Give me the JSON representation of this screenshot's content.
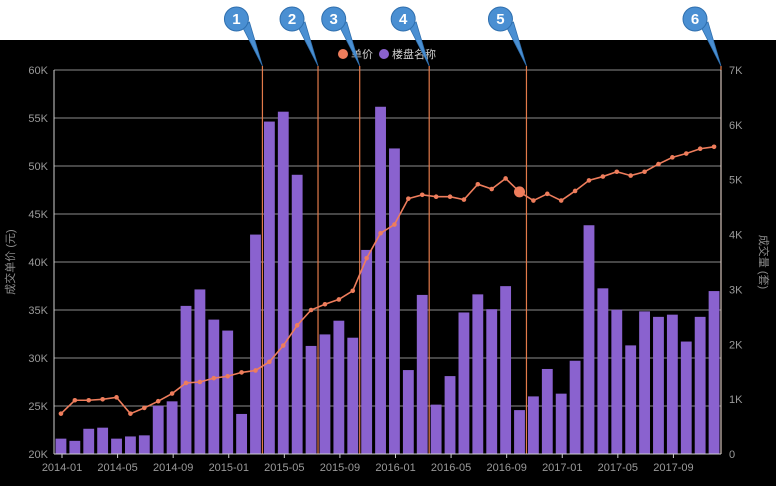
{
  "colors": {
    "background": "#000000",
    "price_line": "#ee7d5c",
    "bars": "#8a62cf",
    "markers": "#e37a4a",
    "callout": "#4a8fd2",
    "grid": "#bdbdbd"
  },
  "callouts": [
    {
      "label": "1",
      "category": "2015-03"
    },
    {
      "label": "2",
      "category": "2015-07"
    },
    {
      "label": "3",
      "category": "2015-10"
    },
    {
      "label": "4",
      "category": "2016-03"
    },
    {
      "label": "5",
      "category": "2016-10"
    },
    {
      "label": "6",
      "category": "2017-12"
    }
  ],
  "chart_data": {
    "type": "bar",
    "categories": [
      "2014-01",
      "2014-02",
      "2014-03",
      "2014-04",
      "2014-05",
      "2014-06",
      "2014-07",
      "2014-08",
      "2014-09",
      "2014-10",
      "2014-11",
      "2014-12",
      "2015-01",
      "2015-02",
      "2015-03",
      "2015-04",
      "2015-05",
      "2015-06",
      "2015-07",
      "2015-08",
      "2015-09",
      "2015-10",
      "2015-11",
      "2015-12",
      "2016-01",
      "2016-02",
      "2016-03",
      "2016-04",
      "2016-05",
      "2016-06",
      "2016-07",
      "2016-08",
      "2016-09",
      "2016-10",
      "2016-11",
      "2016-12",
      "2017-01",
      "2017-02",
      "2017-03",
      "2017-04",
      "2017-05",
      "2017-06",
      "2017-07",
      "2017-08",
      "2017-09",
      "2017-10",
      "2017-11",
      "2017-12"
    ],
    "x_tick_labels": [
      "2014-01",
      "2014-05",
      "2014-09",
      "2015-01",
      "2015-05",
      "2015-09",
      "2016-01",
      "2016-05",
      "2016-09",
      "2017-01",
      "2017-05",
      "2017-09"
    ],
    "series": [
      {
        "name": "单价",
        "type": "line",
        "axis": "left",
        "values": [
          24200,
          25600,
          25600,
          25700,
          25900,
          24200,
          24800,
          25500,
          26300,
          27400,
          27500,
          27900,
          28100,
          28500,
          28700,
          29600,
          31300,
          33400,
          35000,
          35600,
          36100,
          37000,
          40400,
          43000,
          43900,
          46600,
          47000,
          46800,
          46800,
          46500,
          48100,
          47600,
          48700,
          47300,
          46400,
          47100,
          46400,
          47400,
          48500,
          48900,
          49400,
          49000,
          49400,
          50200,
          50900,
          51300,
          51800,
          52000
        ]
      },
      {
        "name": "楼盘名称",
        "type": "bar",
        "axis": "right",
        "values": [
          280,
          240,
          460,
          480,
          280,
          320,
          340,
          880,
          960,
          2700,
          3000,
          2450,
          2250,
          730,
          4000,
          6060,
          6240,
          5090,
          1970,
          2180,
          2430,
          2120,
          3720,
          6330,
          5570,
          1530,
          2900,
          900,
          1420,
          2580,
          2910,
          2640,
          3060,
          800,
          1050,
          1550,
          1100,
          1700,
          4170,
          3020,
          2630,
          1980,
          2600,
          2500,
          2540,
          2050,
          2500,
          2970
        ]
      }
    ],
    "xlabel": "",
    "ylabel": "成交单价 (元)",
    "y2label": "成交量 (套)",
    "ylim": [
      20000,
      60000
    ],
    "y_ticks": [
      "20K",
      "25K",
      "30K",
      "35K",
      "40K",
      "45K",
      "50K",
      "55K",
      "60K"
    ],
    "y2lim": [
      0,
      7000
    ],
    "y2_ticks": [
      "0",
      "1K",
      "2K",
      "3K",
      "4K",
      "5K",
      "6K",
      "7K"
    ],
    "highlighted_point": "2016-10",
    "grid": true,
    "legend": "top-center"
  }
}
